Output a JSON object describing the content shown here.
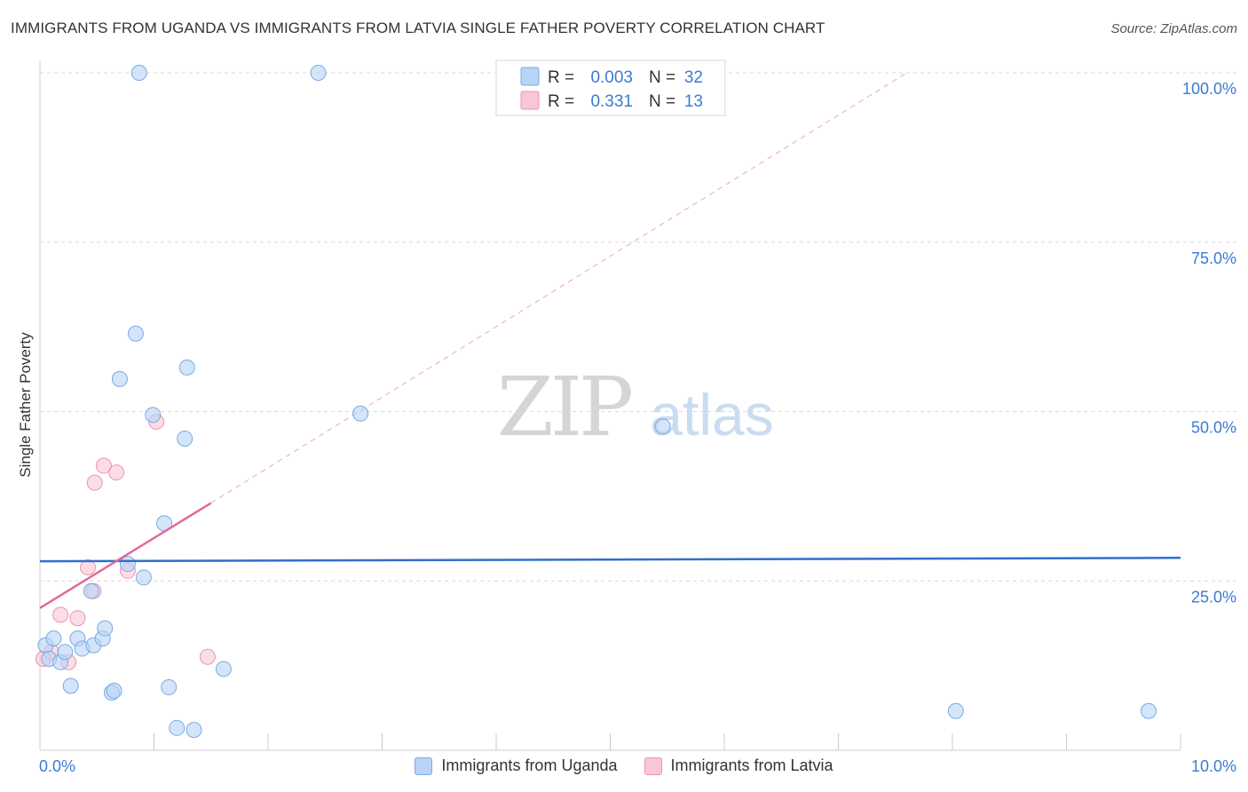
{
  "title": "IMMIGRANTS FROM UGANDA VS IMMIGRANTS FROM LATVIA SINGLE FATHER POVERTY CORRELATION CHART",
  "source": "Source: ZipAtlas.com",
  "watermark": {
    "zip": "ZIP",
    "atlas": "atlas"
  },
  "colors": {
    "uganda_fill": "#b8d3f5",
    "uganda_stroke": "#7aaae6",
    "uganda_line": "#2f6fcc",
    "latvia_fill": "#f8c6d6",
    "latvia_stroke": "#eb95b0",
    "latvia_line": "#e06a94",
    "value_text": "#3a7bd5",
    "grid": "#d9d9d9"
  },
  "stats": [
    {
      "r_label": "R =",
      "r_value": "0.003",
      "n_label": "N =",
      "n_value": "32",
      "series": "uganda"
    },
    {
      "r_label": "R =",
      "r_value": "0.331",
      "n_label": "N =",
      "n_value": "13",
      "series": "latvia"
    }
  ],
  "chart_data": {
    "type": "scatter",
    "title": "IMMIGRANTS FROM UGANDA VS IMMIGRANTS FROM LATVIA SINGLE FATHER POVERTY CORRELATION CHART",
    "xlabel": "",
    "ylabel": "Single Father Poverty",
    "xlim": [
      0,
      10
    ],
    "ylim": [
      0,
      100
    ],
    "x_tick_labels": [
      {
        "value": 0,
        "label": "0.0%"
      },
      {
        "value": 10,
        "label": "10.0%"
      }
    ],
    "x_minor_ticks": [
      1,
      2,
      3,
      4,
      5,
      6,
      7,
      8,
      9
    ],
    "y_ticks": [
      {
        "value": 25,
        "label": "25.0%"
      },
      {
        "value": 50,
        "label": "50.0%"
      },
      {
        "value": 75,
        "label": "75.0%"
      },
      {
        "value": 100,
        "label": "100.0%"
      }
    ],
    "grid": true,
    "legend_position": "bottom-center",
    "series": [
      {
        "name": "Immigrants from Uganda",
        "color": "uganda",
        "points": [
          [
            0.05,
            15.5
          ],
          [
            0.08,
            13.5
          ],
          [
            0.12,
            16.5
          ],
          [
            0.18,
            13
          ],
          [
            0.22,
            14.5
          ],
          [
            0.27,
            9.5
          ],
          [
            0.33,
            16.5
          ],
          [
            0.37,
            15
          ],
          [
            0.45,
            23.5
          ],
          [
            0.47,
            15.5
          ],
          [
            0.55,
            16.5
          ],
          [
            0.57,
            18
          ],
          [
            0.63,
            8.5
          ],
          [
            0.65,
            8.8
          ],
          [
            0.7,
            54.8
          ],
          [
            0.77,
            27.5
          ],
          [
            0.84,
            61.5
          ],
          [
            0.87,
            100
          ],
          [
            0.91,
            25.5
          ],
          [
            0.99,
            49.5
          ],
          [
            1.09,
            33.5
          ],
          [
            1.13,
            9.3
          ],
          [
            1.2,
            3.3
          ],
          [
            1.27,
            46
          ],
          [
            1.29,
            56.5
          ],
          [
            1.35,
            3.0
          ],
          [
            1.61,
            12
          ],
          [
            2.44,
            100
          ],
          [
            2.81,
            49.7
          ],
          [
            5.46,
            47.8
          ],
          [
            8.03,
            5.8
          ],
          [
            9.72,
            5.8
          ]
        ],
        "trend": {
          "x": [
            0,
            10
          ],
          "y": [
            27.9,
            28.4
          ],
          "style": "solid"
        }
      },
      {
        "name": "Immigrants from Latvia",
        "color": "latvia",
        "points": [
          [
            0.03,
            13.5
          ],
          [
            0.1,
            14.5
          ],
          [
            0.18,
            20
          ],
          [
            0.25,
            13
          ],
          [
            0.33,
            19.5
          ],
          [
            0.42,
            27
          ],
          [
            0.47,
            23.5
          ],
          [
            0.48,
            39.5
          ],
          [
            0.56,
            42
          ],
          [
            0.67,
            41
          ],
          [
            0.77,
            26.5
          ],
          [
            1.02,
            48.5
          ],
          [
            1.47,
            13.8
          ]
        ],
        "trend": {
          "x": [
            0,
            1.5
          ],
          "y": [
            21,
            36.5
          ],
          "style": "solid"
        },
        "trend_extension": {
          "x": [
            1.5,
            7.6
          ],
          "y": [
            36.5,
            100
          ],
          "style": "dashed"
        }
      }
    ]
  }
}
